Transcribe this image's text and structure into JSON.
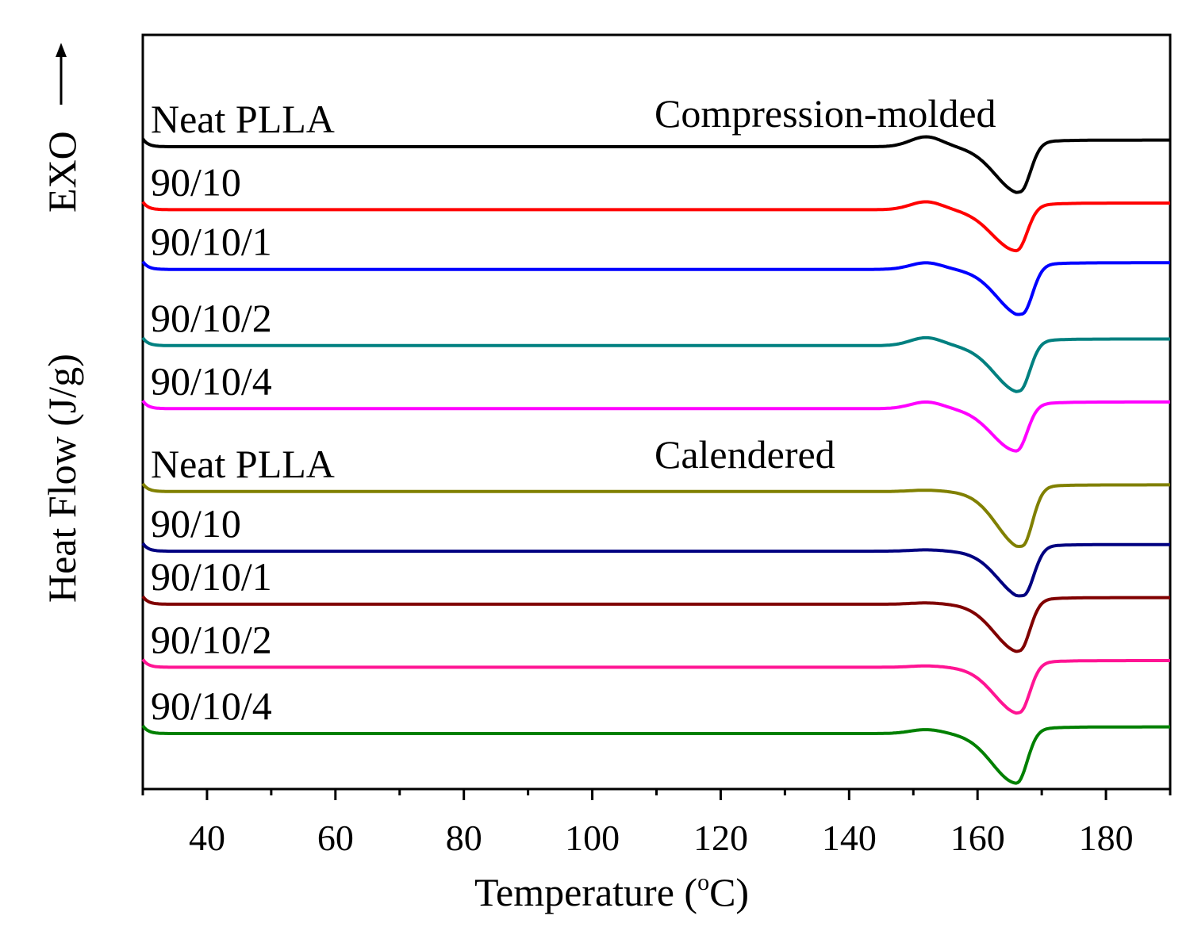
{
  "chart_data": {
    "type": "line",
    "xlabel": "Temperature (",
    "xlabel_sup": "o",
    "xlabel_tail": "C)",
    "ylabel": "Heat Flow (J/g)",
    "exo_label": "EXO",
    "xlim": [
      30,
      190
    ],
    "x_ticks": [
      40,
      60,
      80,
      100,
      120,
      140,
      160,
      180
    ],
    "x_minor_step": 10,
    "y_ticks_shown": false,
    "groups": [
      "Compression-molded",
      "Calendered"
    ],
    "series": [
      {
        "name": "Neat PLLA",
        "group": "Compression-molded",
        "color": "#000000",
        "baseline": 0.0,
        "peak_x": 166.7,
        "peak_depth": 0.7,
        "prepeak": 0.15
      },
      {
        "name": "90/10",
        "group": "Compression-molded",
        "color": "#ff0000",
        "baseline": -0.95,
        "peak_x": 166.2,
        "peak_depth": 0.62,
        "prepeak": 0.12
      },
      {
        "name": "90/10/1",
        "group": "Compression-molded",
        "color": "#0000ff",
        "baseline": -1.85,
        "peak_x": 167.0,
        "peak_depth": 0.7,
        "prepeak": 0.1
      },
      {
        "name": "90/10/2",
        "group": "Compression-molded",
        "color": "#008080",
        "baseline": -3.0,
        "peak_x": 166.6,
        "peak_depth": 0.7,
        "prepeak": 0.12
      },
      {
        "name": "90/10/4",
        "group": "Compression-molded",
        "color": "#ff00ff",
        "baseline": -3.95,
        "peak_x": 166.2,
        "peak_depth": 0.64,
        "prepeak": 0.1
      },
      {
        "name": "Neat PLLA",
        "group": "Calendered",
        "color": "#808000",
        "baseline": -5.2,
        "peak_x": 167.0,
        "peak_depth": 0.85,
        "prepeak": 0.02
      },
      {
        "name": "90/10",
        "group": "Calendered",
        "color": "#000080",
        "baseline": -6.1,
        "peak_x": 167.2,
        "peak_depth": 0.7,
        "prepeak": 0.02
      },
      {
        "name": "90/10/1",
        "group": "Calendered",
        "color": "#800000",
        "baseline": -6.9,
        "peak_x": 166.6,
        "peak_depth": 0.72,
        "prepeak": 0.02
      },
      {
        "name": "90/10/2",
        "group": "Calendered",
        "color": "#ff1493",
        "baseline": -7.85,
        "peak_x": 166.6,
        "peak_depth": 0.7,
        "prepeak": 0.02
      },
      {
        "name": "90/10/4",
        "group": "Calendered",
        "color": "#008000",
        "baseline": -8.85,
        "peak_x": 166.2,
        "peak_depth": 0.75,
        "prepeak": 0.06
      }
    ]
  }
}
